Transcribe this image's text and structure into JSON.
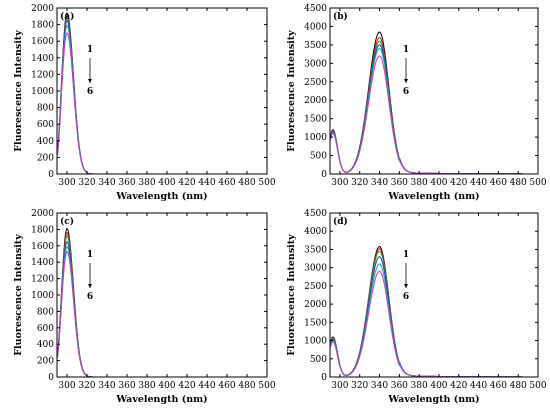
{
  "figure_title": "",
  "chart_data": [
    {
      "type": "line",
      "panel_label": "(a)",
      "xlabel": "Wavelength (nm)",
      "ylabel": "Fluorescence Intensity",
      "xlim": [
        290,
        500
      ],
      "ylim": [
        0,
        2000
      ],
      "xticks": [
        300,
        320,
        340,
        360,
        380,
        400,
        420,
        440,
        460,
        480,
        500
      ],
      "yticks": [
        0,
        200,
        400,
        600,
        800,
        1000,
        1200,
        1400,
        1600,
        1800,
        2000
      ],
      "arrow_start_label": "1",
      "arrow_end_label": "6",
      "peak_x": 300,
      "series": [
        {
          "peak": 1940,
          "start": 260,
          "color": "#000000"
        },
        {
          "peak": 1910,
          "start": 250,
          "color": "#d11a1a"
        },
        {
          "peak": 1880,
          "start": 240,
          "color": "#2a9a2a"
        },
        {
          "peak": 1850,
          "start": 230,
          "color": "#1f3fbf"
        },
        {
          "peak": 1790,
          "start": 220,
          "color": "#19a3b3"
        },
        {
          "peak": 1700,
          "start": 210,
          "color": "#c040c0"
        }
      ]
    },
    {
      "type": "line",
      "panel_label": "(b)",
      "xlabel": "Wavelength (nm)",
      "ylabel": "Fluorescence Intensity",
      "xlim": [
        290,
        500
      ],
      "ylim": [
        0,
        4500
      ],
      "xticks": [
        300,
        320,
        340,
        360,
        380,
        400,
        420,
        440,
        460,
        480,
        500
      ],
      "yticks": [
        0,
        500,
        1000,
        1500,
        2000,
        2500,
        3000,
        3500,
        4000,
        4500
      ],
      "arrow_start_label": "1",
      "arrow_end_label": "6",
      "peak_x": 340,
      "series": [
        {
          "peak": 3850,
          "short_peak": 1200,
          "color": "#000000"
        },
        {
          "peak": 3700,
          "short_peak": 1180,
          "color": "#d11a1a"
        },
        {
          "peak": 3600,
          "short_peak": 1160,
          "color": "#2a9a2a"
        },
        {
          "peak": 3500,
          "short_peak": 1150,
          "color": "#1f3fbf"
        },
        {
          "peak": 3400,
          "short_peak": 1130,
          "color": "#19a3b3"
        },
        {
          "peak": 3200,
          "short_peak": 1100,
          "color": "#c040c0"
        }
      ]
    },
    {
      "type": "line",
      "panel_label": "(c)",
      "xlabel": "Wavelength (nm)",
      "ylabel": "Fluorescence Intensity",
      "xlim": [
        290,
        500
      ],
      "ylim": [
        0,
        2000
      ],
      "xticks": [
        300,
        320,
        340,
        360,
        380,
        400,
        420,
        440,
        460,
        480,
        500
      ],
      "yticks": [
        0,
        200,
        400,
        600,
        800,
        1000,
        1200,
        1400,
        1600,
        1800,
        2000
      ],
      "arrow_start_label": "1",
      "arrow_end_label": "6",
      "peak_x": 300,
      "series": [
        {
          "peak": 1810,
          "start": 250,
          "color": "#000000"
        },
        {
          "peak": 1760,
          "start": 245,
          "color": "#d11a1a"
        },
        {
          "peak": 1720,
          "start": 240,
          "color": "#2a9a2a"
        },
        {
          "peak": 1650,
          "start": 235,
          "color": "#1f3fbf"
        },
        {
          "peak": 1590,
          "start": 230,
          "color": "#19a3b3"
        },
        {
          "peak": 1530,
          "start": 225,
          "color": "#c040c0"
        }
      ]
    },
    {
      "type": "line",
      "panel_label": "(d)",
      "xlabel": "Wavelength (nm)",
      "ylabel": "Fluorescence Intensity",
      "xlim": [
        290,
        500
      ],
      "ylim": [
        0,
        4500
      ],
      "xticks": [
        300,
        320,
        340,
        360,
        380,
        400,
        420,
        440,
        460,
        480,
        500
      ],
      "yticks": [
        0,
        500,
        1000,
        1500,
        2000,
        2500,
        3000,
        3500,
        4000,
        4500
      ],
      "arrow_start_label": "1",
      "arrow_end_label": "6",
      "peak_x": 340,
      "series": [
        {
          "peak": 3580,
          "short_peak": 1100,
          "color": "#000000"
        },
        {
          "peak": 3520,
          "short_peak": 1080,
          "color": "#d11a1a"
        },
        {
          "peak": 3450,
          "short_peak": 1060,
          "color": "#2a9a2a"
        },
        {
          "peak": 3300,
          "short_peak": 1030,
          "color": "#1f3fbf"
        },
        {
          "peak": 3100,
          "short_peak": 1000,
          "color": "#19a3b3"
        },
        {
          "peak": 2900,
          "short_peak": 960,
          "color": "#c040c0"
        }
      ]
    }
  ]
}
